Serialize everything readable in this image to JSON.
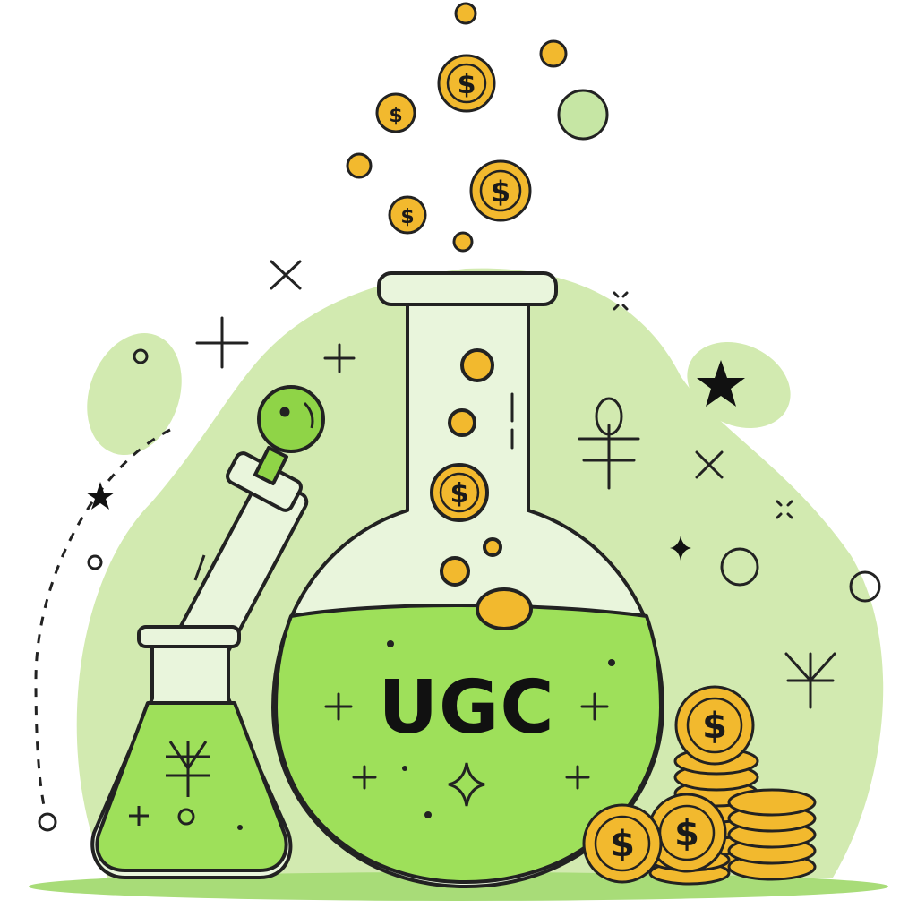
{
  "illustration": {
    "flask_label": "UGC",
    "coin_symbol": "$",
    "colors": {
      "background_blob": "#cfe8ac",
      "liquid": "#9ee05a",
      "glass": "#e9f5dc",
      "coin": "#f2b92e",
      "outline": "#222222",
      "ground": "#a8dc78"
    },
    "icons": [
      "round-flask-icon",
      "erlenmeyer-flask-icon",
      "dropper-icon",
      "coin-stack-icon",
      "coin-icon",
      "sparkle-icon",
      "star-icon",
      "alchemy-symbol-icon"
    ]
  }
}
